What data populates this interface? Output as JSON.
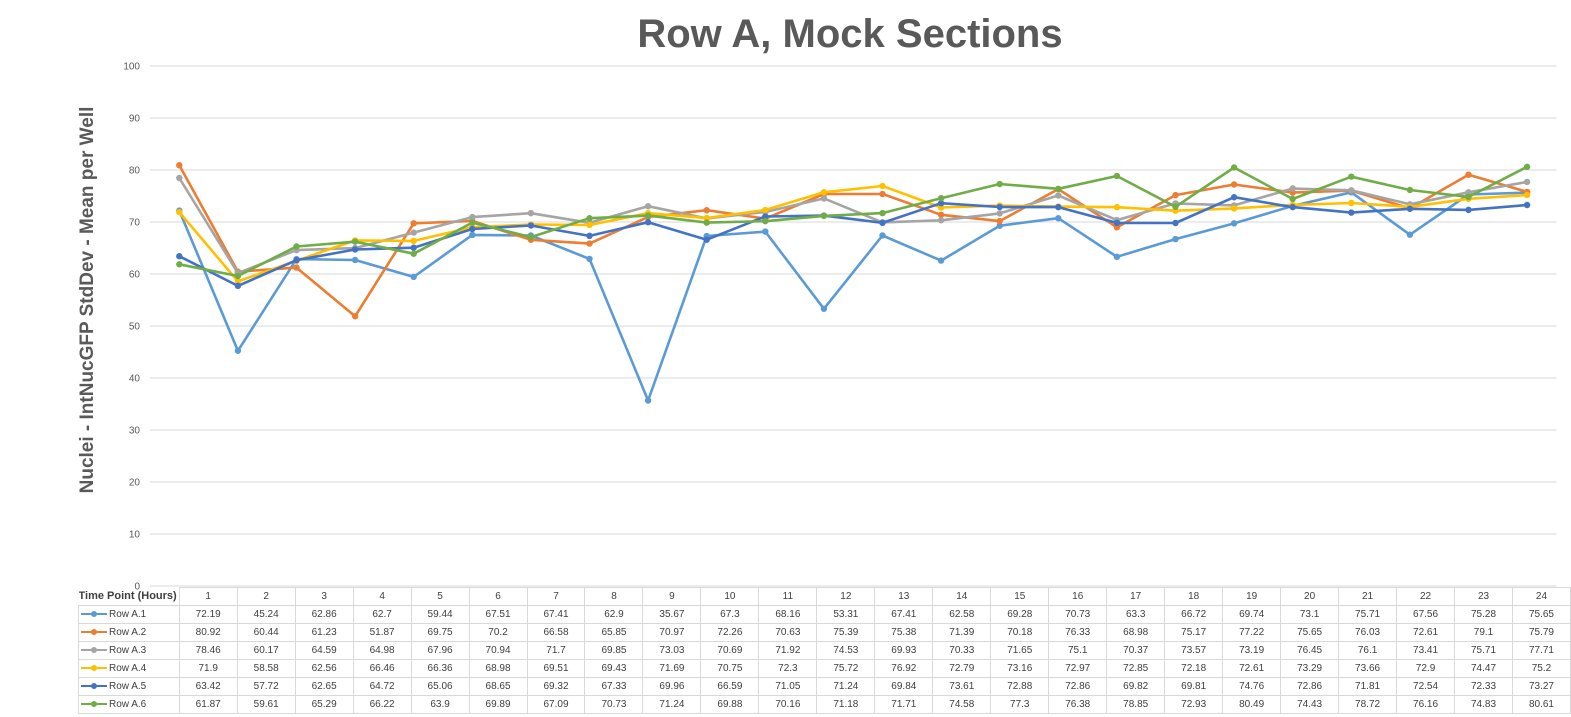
{
  "chart_data": {
    "type": "line",
    "title": "Row A, Mock Sections",
    "ylabel": "Nuclei - IntNucGFP StdDev - Mean per Well",
    "xlabel": "Time Point (Hours)",
    "ylim": [
      0,
      100
    ],
    "yticks": [
      0,
      10,
      20,
      30,
      40,
      50,
      60,
      70,
      80,
      90,
      100
    ],
    "grid": true,
    "legend": "data table below plot",
    "categories": [
      "1",
      "2",
      "3",
      "4",
      "5",
      "6",
      "7",
      "8",
      "9",
      "10",
      "11",
      "12",
      "13",
      "14",
      "15",
      "16",
      "17",
      "18",
      "19",
      "20",
      "21",
      "22",
      "23",
      "24"
    ],
    "series": [
      {
        "name": "Row A.1",
        "color": "#5b9bd5",
        "values": [
          72.19,
          45.24,
          62.86,
          62.7,
          59.44,
          67.51,
          67.41,
          62.9,
          35.67,
          67.3,
          68.16,
          53.31,
          67.41,
          62.58,
          69.28,
          70.73,
          63.3,
          66.72,
          69.74,
          73.1,
          75.71,
          67.56,
          75.28,
          75.65
        ]
      },
      {
        "name": "Row A.2",
        "color": "#ed7d31",
        "values": [
          80.92,
          60.44,
          61.23,
          51.87,
          69.75,
          70.2,
          66.58,
          65.85,
          70.97,
          72.26,
          70.63,
          75.39,
          75.38,
          71.39,
          70.18,
          76.33,
          68.98,
          75.17,
          77.22,
          75.65,
          76.03,
          72.61,
          79.1,
          75.79
        ]
      },
      {
        "name": "Row A.3",
        "color": "#a5a5a5",
        "values": [
          78.46,
          60.17,
          64.59,
          64.98,
          67.96,
          70.94,
          71.7,
          69.85,
          73.03,
          70.69,
          71.92,
          74.53,
          69.93,
          70.33,
          71.65,
          75.1,
          70.37,
          73.57,
          73.19,
          76.45,
          76.1,
          73.41,
          75.71,
          77.71
        ]
      },
      {
        "name": "Row A.4",
        "color": "#ffc000",
        "values": [
          71.9,
          58.58,
          62.56,
          66.46,
          66.36,
          68.98,
          69.51,
          69.43,
          71.69,
          70.75,
          72.3,
          75.72,
          76.92,
          72.79,
          73.16,
          72.97,
          72.85,
          72.18,
          72.61,
          73.29,
          73.66,
          72.9,
          74.47,
          75.2
        ]
      },
      {
        "name": "Row A.5",
        "color": "#4472c4",
        "values": [
          63.42,
          57.72,
          62.65,
          64.72,
          65.06,
          68.65,
          69.32,
          67.33,
          69.96,
          66.59,
          71.05,
          71.24,
          69.84,
          73.61,
          72.88,
          72.86,
          69.82,
          69.81,
          74.76,
          72.86,
          71.81,
          72.54,
          72.33,
          73.27
        ]
      },
      {
        "name": "Row A.6",
        "color": "#70ad47",
        "values": [
          61.87,
          59.61,
          65.29,
          66.22,
          63.9,
          69.89,
          67.09,
          70.73,
          71.24,
          69.88,
          70.16,
          71.18,
          71.71,
          74.58,
          77.3,
          76.38,
          78.85,
          72.93,
          80.49,
          74.43,
          78.72,
          76.16,
          74.83,
          80.61
        ]
      }
    ]
  }
}
